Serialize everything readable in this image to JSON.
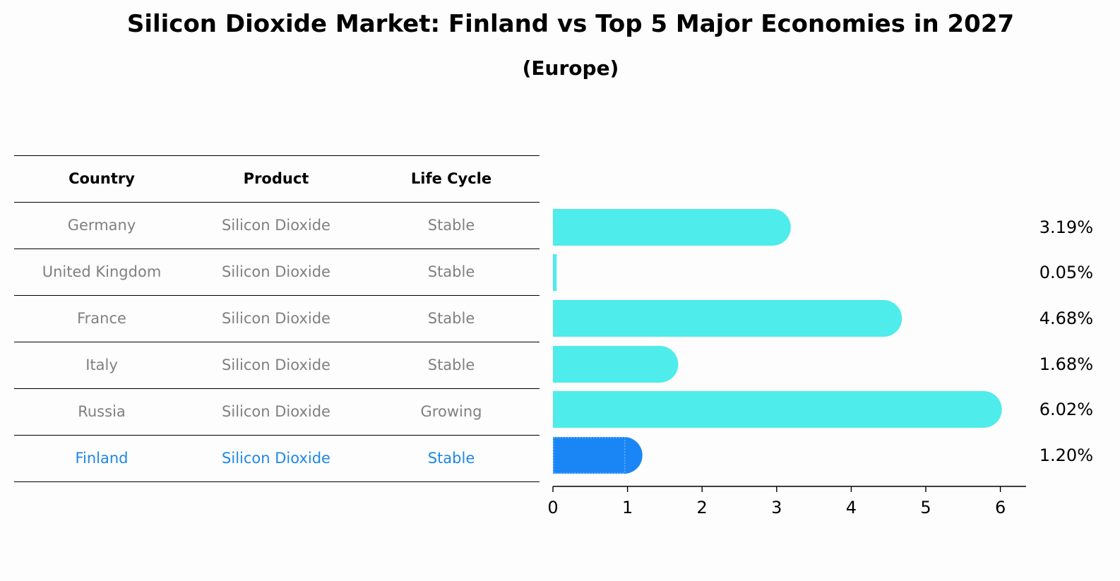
{
  "title": "Silicon Dioxide Market: Finland vs Top 5 Major Economies in 2027",
  "subtitle": "(Europe)",
  "table": {
    "columns": [
      "Country",
      "Product",
      "Life Cycle"
    ],
    "rows": [
      [
        "Germany",
        "Silicon Dioxide",
        "Stable"
      ],
      [
        "United Kingdom",
        "Silicon Dioxide",
        "Stable"
      ],
      [
        "France",
        "Silicon Dioxide",
        "Stable"
      ],
      [
        "Italy",
        "Silicon Dioxide",
        "Stable"
      ],
      [
        "Russia",
        "Silicon Dioxide",
        "Growing"
      ],
      [
        "Finland",
        "Silicon Dioxide",
        "Stable"
      ]
    ],
    "highlight_row": "Finland"
  },
  "colors": {
    "bar": "#4eecea",
    "highlight_bar": "#1a86f5",
    "highlight_text": "#1e88e5",
    "muted_text": "#808080"
  },
  "chart_data": {
    "type": "bar",
    "orientation": "horizontal",
    "categories": [
      "Germany",
      "United Kingdom",
      "France",
      "Italy",
      "Russia",
      "Finland"
    ],
    "values": [
      3.19,
      0.05,
      4.68,
      1.68,
      6.02,
      1.2
    ],
    "value_labels": [
      "3.19%",
      "0.05%",
      "4.68%",
      "1.68%",
      "6.02%",
      "1.20%"
    ],
    "highlight": "Finland",
    "xlim": [
      0,
      6.32
    ],
    "xticks": [
      0,
      1,
      2,
      3,
      4,
      5,
      6
    ],
    "xtick_labels": [
      "0",
      "1",
      "2",
      "3",
      "4",
      "5",
      "6"
    ],
    "grid": false
  }
}
